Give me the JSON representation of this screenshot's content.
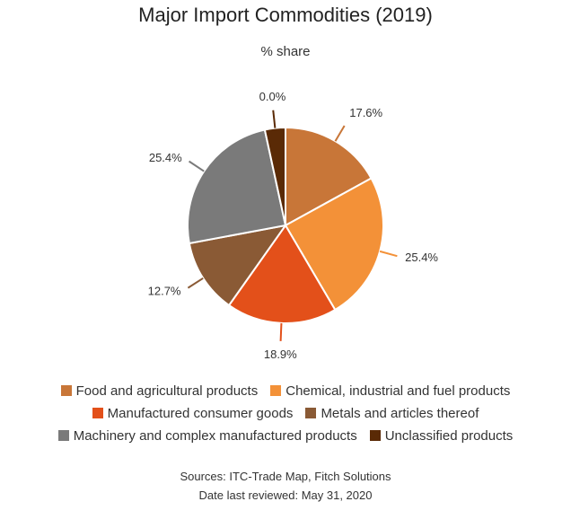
{
  "chart_data": {
    "type": "pie",
    "title": "Major Import Commodities (2019)",
    "subtitle": "% share",
    "slices": [
      {
        "name": "Food and agricultural products",
        "value": 17.6,
        "label": "17.6%",
        "color": "#C87638"
      },
      {
        "name": "Chemical, industrial and fuel products",
        "value": 25.4,
        "label": "25.4%",
        "color": "#F39138"
      },
      {
        "name": "Manufactured consumer goods",
        "value": 18.9,
        "label": "18.9%",
        "color": "#E3501A"
      },
      {
        "name": "Metals and articles thereof",
        "value": 12.7,
        "label": "12.7%",
        "color": "#8A5A35"
      },
      {
        "name": "Machinery and complex manufactured products",
        "value": 25.4,
        "label": "25.4%",
        "color": "#7A7A7A"
      },
      {
        "name": "Unclassified products",
        "value": 0.0,
        "label": "0.0%",
        "color": "#5A2A06"
      }
    ],
    "legend_position": "bottom"
  },
  "footer": {
    "source": "Sources: ITC-Trade Map, Fitch Solutions",
    "reviewed": "Date last reviewed: May 31, 2020"
  }
}
